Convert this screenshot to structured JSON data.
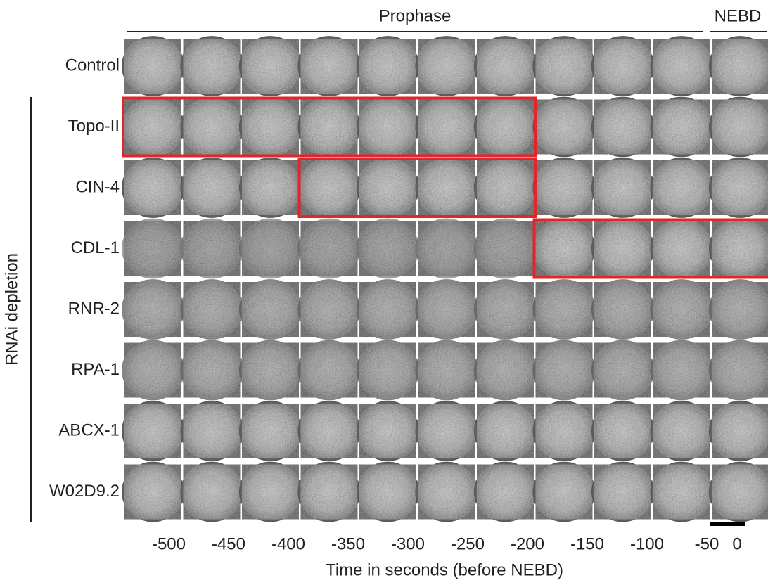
{
  "header": {
    "phases": [
      "Prophase",
      "NEBD"
    ]
  },
  "rows": [
    "Control",
    "Topo-II",
    "CIN-4",
    "CDL-1",
    "RNR-2",
    "RPA-1",
    "ABCX-1",
    "W02D9.2"
  ],
  "group_label": "RNAi depletion",
  "times": [
    -500,
    -450,
    -400,
    -350,
    -300,
    -250,
    -200,
    -150,
    -100,
    -50,
    0
  ],
  "axis_title": "Time in seconds (before NEBD)"
}
